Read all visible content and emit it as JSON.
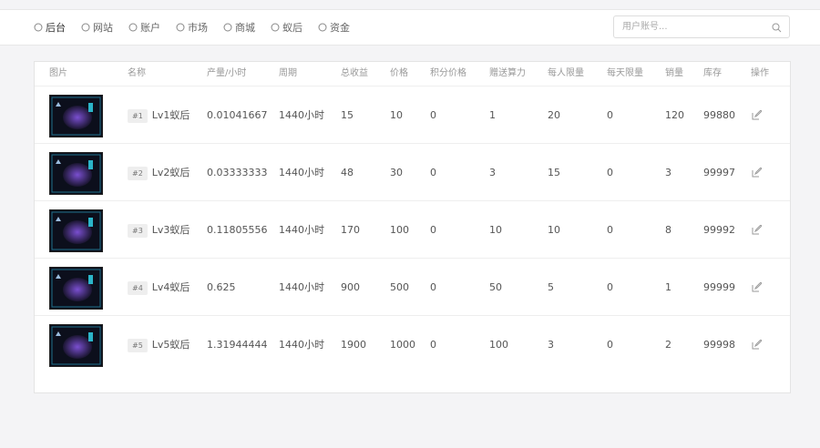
{
  "nav": {
    "items": [
      "后台",
      "网站",
      "账户",
      "市场",
      "商城",
      "蚁后",
      "资金"
    ],
    "search_placeholder": "用户账号..."
  },
  "table": {
    "headers": [
      "图片",
      "名称",
      "产量/小时",
      "周期",
      "总收益",
      "价格",
      "积分价格",
      "赠送算力",
      "每人限量",
      "每天限量",
      "销量",
      "库存",
      "操作"
    ],
    "rows": [
      {
        "badge": "#1",
        "name": "Lv1蚁后",
        "cells": [
          "0.01041667",
          "1440小时",
          "15",
          "10",
          "0",
          "1",
          "20",
          "0",
          "120",
          "99880"
        ]
      },
      {
        "badge": "#2",
        "name": "Lv2蚁后",
        "cells": [
          "0.03333333",
          "1440小时",
          "48",
          "30",
          "0",
          "3",
          "15",
          "0",
          "3",
          "99997"
        ]
      },
      {
        "badge": "#3",
        "name": "Lv3蚁后",
        "cells": [
          "0.11805556",
          "1440小时",
          "170",
          "100",
          "0",
          "10",
          "10",
          "0",
          "8",
          "99992"
        ]
      },
      {
        "badge": "#4",
        "name": "Lv4蚁后",
        "cells": [
          "0.625",
          "1440小时",
          "900",
          "500",
          "0",
          "50",
          "5",
          "0",
          "1",
          "99999"
        ]
      },
      {
        "badge": "#5",
        "name": "Lv5蚁后",
        "cells": [
          "1.31944444",
          "1440小时",
          "1900",
          "1000",
          "0",
          "100",
          "3",
          "0",
          "2",
          "99998"
        ]
      }
    ]
  }
}
